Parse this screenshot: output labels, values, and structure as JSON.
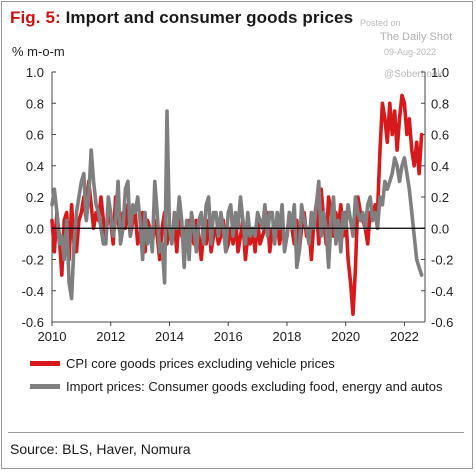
{
  "title": {
    "fig": "Fig. 5:",
    "text": "Import and consumer goods prices"
  },
  "watermark": {
    "posted": "Posted on",
    "name": "The Daily Shot",
    "date": "09-Aug-2022",
    "handle": "@SoberLook"
  },
  "source": "Source: BLS, Haver, Nomura",
  "colors": {
    "cpi": "#d7191c",
    "import": "#7f7f7f",
    "zero": "#000000"
  },
  "chart_data": {
    "type": "line",
    "title": "Import and consumer goods prices",
    "ylabel": "% m-o-m",
    "ylim": [
      -0.6,
      1.0
    ],
    "yticks": [
      "1.0",
      "0.8",
      "0.6",
      "0.4",
      "0.2",
      "0.0",
      "-0.2",
      "-0.4",
      "-0.6"
    ],
    "right_yticks": [
      "1.0",
      "0.8",
      "0.6",
      "0.4",
      "0.2",
      "0.0",
      "-0.2",
      "-0.4",
      "-0.6"
    ],
    "xlim": [
      2010.0,
      2022.7
    ],
    "xticks": [
      "2010",
      "2012",
      "2014",
      "2016",
      "2018",
      "2020",
      "2022"
    ],
    "x_start": 2010.0,
    "x_step": 0.0833333,
    "legend": "bottom",
    "series": [
      {
        "name": "CPI core goods prices excluding vehicle prices",
        "key": "cpi",
        "values": [
          0.05,
          -0.15,
          0.1,
          -0.05,
          -0.3,
          0.05,
          0.1,
          -0.2,
          0.15,
          -0.1,
          -0.15,
          0.05,
          0.1,
          0.2,
          0.05,
          0.3,
          0.15,
          0.0,
          0.1,
          0.05,
          0.2,
          0.05,
          -0.05,
          0.1,
          0.05,
          -0.1,
          0.2,
          0.05,
          -0.05,
          0.1,
          0.0,
          0.15,
          -0.05,
          0.05,
          0.1,
          -0.1,
          -0.05,
          0.1,
          -0.15,
          0.05,
          0.0,
          -0.1,
          0.05,
          -0.05,
          -0.2,
          0.0,
          0.1,
          -0.1,
          0.0,
          -0.05,
          0.05,
          -0.15,
          0.1,
          -0.05,
          0.0,
          -0.1,
          0.05,
          -0.05,
          -0.1,
          0.05,
          -0.05,
          -0.2,
          0.0,
          -0.1,
          0.05,
          -0.15,
          -0.05,
          0.0,
          -0.1,
          -0.05,
          0.05,
          -0.15,
          -0.1,
          0.0,
          -0.1,
          0.05,
          -0.15,
          -0.05,
          0.05,
          -0.2,
          -0.05,
          -0.1,
          0.0,
          -0.15,
          0.05,
          -0.1,
          -0.05,
          0.0,
          0.1,
          -0.15,
          0.0,
          -0.05,
          0.05,
          -0.1,
          0.0,
          -0.05,
          -0.05,
          0.1,
          0.0,
          -0.1,
          0.05,
          -0.15,
          0.0,
          0.1,
          -0.05,
          0.0,
          -0.2,
          0.05,
          0.15,
          -0.1,
          0.25,
          0.05,
          -0.1,
          0.2,
          0.1,
          -0.05,
          0.1,
          0.0,
          0.15,
          -0.05,
          0.1,
          -0.2,
          -0.35,
          -0.55,
          -0.25,
          0.2,
          0.1,
          0.05,
          0.0,
          -0.1,
          0.1,
          0.05,
          0.15,
          0.1,
          0.5,
          0.8,
          0.7,
          0.55,
          0.8,
          0.6,
          0.75,
          0.5,
          0.7,
          0.85,
          0.8,
          0.6,
          0.7,
          0.5,
          0.4,
          0.55,
          0.35,
          0.6
        ]
      },
      {
        "name": "Import prices: Consumer goods excluding food, energy and autos",
        "key": "import",
        "values": [
          0.15,
          0.25,
          0.1,
          -0.1,
          -0.05,
          -0.2,
          0.05,
          -0.35,
          -0.45,
          -0.1,
          0.1,
          0.2,
          0.3,
          0.35,
          0.05,
          0.2,
          0.5,
          0.3,
          0.15,
          0.1,
          0.0,
          -0.1,
          -0.1,
          0.2,
          0.1,
          -0.05,
          0.05,
          0.3,
          -0.1,
          0.0,
          0.25,
          0.3,
          -0.05,
          0.15,
          0.1,
          0.2,
          0.05,
          -0.2,
          0.1,
          -0.1,
          0.0,
          -0.15,
          0.3,
          0.1,
          -0.15,
          -0.1,
          -0.35,
          0.75,
          0.0,
          -0.1,
          0.1,
          0.0,
          0.2,
          0.05,
          -0.25,
          0.05,
          -0.2,
          0.1,
          0.0,
          -0.15,
          0.05,
          0.1,
          -0.1,
          0.15,
          0.2,
          -0.1,
          0.1,
          0.1,
          -0.05,
          0.1,
          0.0,
          -0.15,
          0.1,
          0.15,
          -0.05,
          0.1,
          0.0,
          0.2,
          0.05,
          -0.1,
          0.1,
          -0.05,
          0.0,
          -0.05,
          0.1,
          0.05,
          0.0,
          0.15,
          -0.05,
          0.1,
          0.1,
          -0.1,
          0.1,
          0.0,
          0.15,
          -0.15,
          -0.05,
          0.1,
          0.0,
          0.15,
          -0.25,
          -0.15,
          0.15,
          0.05,
          0.0,
          -0.1,
          0.1,
          0.0,
          0.15,
          0.3,
          -0.05,
          0.1,
          0.0,
          -0.25,
          0.05,
          0.2,
          -0.1,
          0.05,
          -0.15,
          0.1,
          0.0,
          0.15,
          0.05,
          -0.05,
          0.2,
          0.1,
          0.05,
          0.1,
          0.0,
          0.15,
          0.2,
          0.05,
          0.1,
          0.0,
          0.2,
          0.15,
          0.3,
          0.25,
          0.3,
          0.35,
          0.45,
          0.4,
          0.3,
          0.4,
          0.45,
          0.35,
          0.25,
          0.1,
          -0.05,
          -0.2,
          -0.25,
          -0.3
        ]
      }
    ]
  }
}
